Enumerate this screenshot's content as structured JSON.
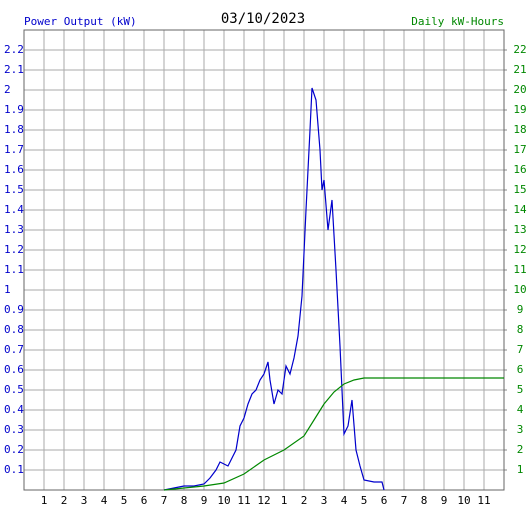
{
  "chart_data": {
    "type": "line",
    "title": "03/10/2023",
    "y_label": "Power Output (kW)",
    "y2_label": "Daily kW-Hours",
    "grid": true,
    "xlim": [
      0,
      24
    ],
    "xticks": [
      1,
      2,
      3,
      4,
      5,
      6,
      7,
      8,
      9,
      10,
      11,
      12,
      {
        "value": 13,
        "label": "1"
      },
      {
        "value": 14,
        "label": "2"
      },
      {
        "value": 15,
        "label": "3"
      },
      {
        "value": 16,
        "label": "4"
      },
      {
        "value": 17,
        "label": "5"
      },
      {
        "value": 18,
        "label": "6"
      },
      {
        "value": 19,
        "label": "7"
      },
      {
        "value": 20,
        "label": "8"
      },
      {
        "value": 21,
        "label": "9"
      },
      {
        "value": 22,
        "label": "10"
      },
      {
        "value": 23,
        "label": "11"
      }
    ],
    "ylim": [
      0,
      2.3
    ],
    "yticks": [
      0.1,
      0.2,
      0.3,
      0.4,
      0.5,
      0.6,
      0.7,
      0.8,
      0.9,
      1.0,
      1.1,
      1.2,
      1.3,
      1.4,
      1.5,
      1.6,
      1.7,
      1.8,
      1.9,
      2.0,
      2.1,
      2.2
    ],
    "y2lim": [
      0,
      23
    ],
    "y2ticks": [
      1,
      2,
      3,
      4,
      5,
      6,
      7,
      8,
      9,
      10,
      11,
      12,
      13,
      14,
      15,
      16,
      17,
      18,
      19,
      20,
      21,
      22
    ],
    "series": [
      {
        "color": "#0000cc",
        "axis": "y",
        "x": [
          7.0,
          7.5,
          8.0,
          8.5,
          9.0,
          9.3,
          9.6,
          9.8,
          10.0,
          10.2,
          10.4,
          10.6,
          10.8,
          11.0,
          11.2,
          11.4,
          11.6,
          11.8,
          12.0,
          12.2,
          12.3,
          12.5,
          12.7,
          12.9,
          13.1,
          13.3,
          13.5,
          13.7,
          13.9,
          14.1,
          14.3,
          14.4,
          14.6,
          14.8,
          14.9,
          15.0,
          15.2,
          15.4,
          15.6,
          15.8,
          16.0,
          16.2,
          16.4,
          16.6,
          16.8,
          17.0,
          17.5,
          17.9,
          18.0
        ],
        "values": [
          0,
          0.01,
          0.02,
          0.02,
          0.03,
          0.06,
          0.1,
          0.14,
          0.13,
          0.12,
          0.16,
          0.2,
          0.32,
          0.36,
          0.43,
          0.48,
          0.5,
          0.55,
          0.58,
          0.64,
          0.55,
          0.43,
          0.5,
          0.48,
          0.62,
          0.58,
          0.66,
          0.77,
          0.97,
          1.4,
          1.8,
          2.01,
          1.95,
          1.7,
          1.5,
          1.55,
          1.3,
          1.45,
          1.1,
          0.72,
          0.28,
          0.32,
          0.45,
          0.2,
          0.12,
          0.05,
          0.04,
          0.04,
          0
        ]
      },
      {
        "color": "#008800",
        "axis": "y2",
        "x": [
          7.0,
          8.0,
          9.0,
          10.0,
          11.0,
          12.0,
          13.0,
          14.0,
          14.5,
          15.0,
          15.5,
          16.0,
          16.5,
          17.0,
          20.0,
          24.0
        ],
        "values": [
          0,
          0.1,
          0.2,
          0.35,
          0.8,
          1.5,
          2.0,
          2.7,
          3.5,
          4.3,
          4.9,
          5.3,
          5.5,
          5.6,
          5.6,
          5.6
        ]
      }
    ]
  }
}
